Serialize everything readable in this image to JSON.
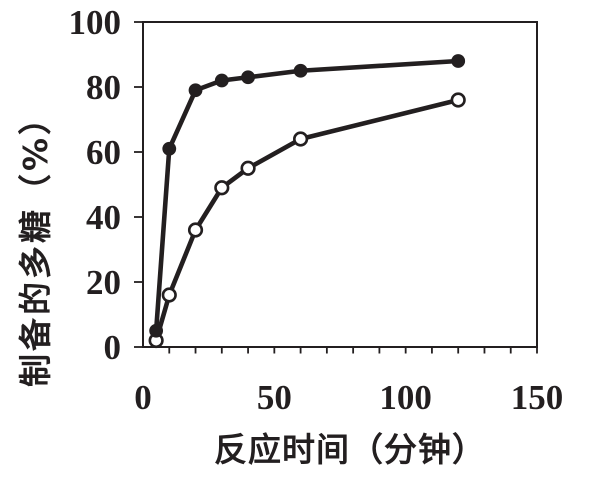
{
  "figure": {
    "background": "#ffffff",
    "ink_color": "#231f20"
  },
  "chart_data": {
    "type": "line",
    "title": "",
    "xlabel": "反应时间（分钟）",
    "ylabel": "制备的多糖（%）",
    "xlim": [
      0,
      150
    ],
    "ylim": [
      0,
      100
    ],
    "x_major_ticks": [
      0,
      50,
      100,
      150
    ],
    "x_minor_tick_step": 10,
    "y_major_ticks": [
      0,
      20,
      40,
      60,
      80,
      100
    ],
    "grid": "off",
    "legend": "none",
    "series": [
      {
        "name": "open-circle-series",
        "marker": "open-circle",
        "color": "#231f20",
        "x": [
          5,
          10,
          20,
          30,
          40,
          60,
          120
        ],
        "y": [
          2,
          16,
          36,
          49,
          55,
          64,
          76
        ]
      },
      {
        "name": "filled-circle-series",
        "marker": "filled-circle",
        "color": "#231f20",
        "x": [
          5,
          10,
          20,
          30,
          40,
          60,
          120
        ],
        "y": [
          5,
          61,
          79,
          82,
          83,
          85,
          88
        ]
      }
    ]
  }
}
